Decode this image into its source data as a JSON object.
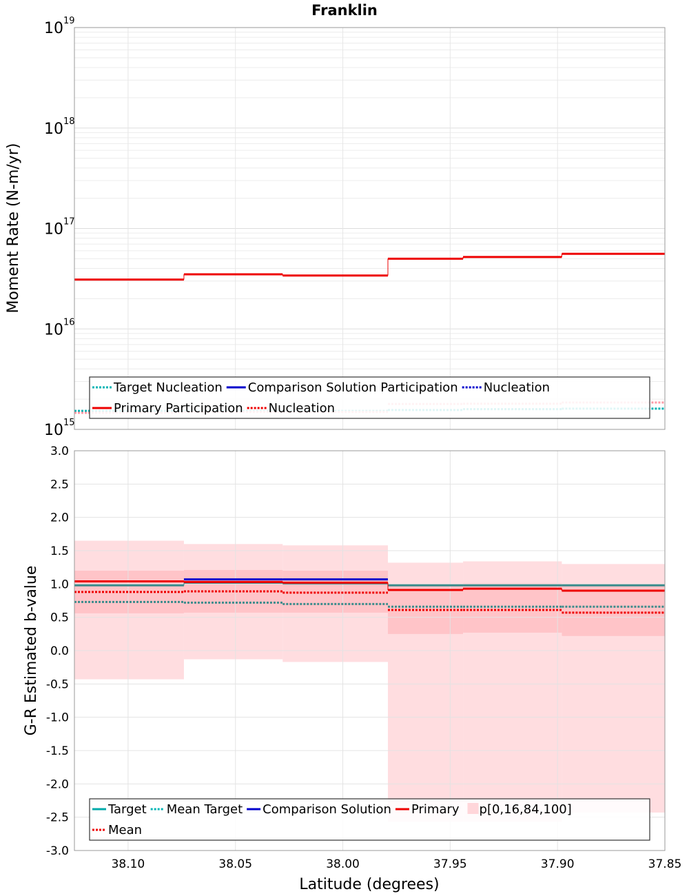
{
  "chart_data": [
    {
      "type": "line",
      "title": "Franklin",
      "xlabel": "",
      "ylabel": "Moment Rate (N-m/yr)",
      "y_scale": "log",
      "ylim": [
        1000000000000000.0,
        1e+19
      ],
      "xlim": [
        38.125,
        37.85
      ],
      "x_reversed": true,
      "y_ticks": [
        {
          "base": "10",
          "exp": "15"
        },
        {
          "base": "10",
          "exp": "16"
        },
        {
          "base": "10",
          "exp": "17"
        },
        {
          "base": "10",
          "exp": "18"
        },
        {
          "base": "10",
          "exp": "19"
        }
      ],
      "grid": true,
      "x_edges": [
        38.125,
        38.074,
        38.028,
        37.979,
        37.944,
        37.898,
        37.85
      ],
      "series": [
        {
          "name": "Primary Participation",
          "color": "#ee0000",
          "style": "solid",
          "values": [
            3.1e+16,
            3.5e+16,
            3.4e+16,
            5e+16,
            5.2e+16,
            5.6e+16
          ]
        },
        {
          "name": "Target Nucleation",
          "color": "#00b4b4",
          "style": "dotted",
          "values": [
            1530000000000000.0,
            1530000000000000.0,
            1530000000000000.0,
            1560000000000000.0,
            1590000000000000.0,
            1610000000000000.0
          ]
        },
        {
          "name": "Comparison Solution Participation",
          "color": "#0000cc",
          "style": "solid",
          "values": []
        },
        {
          "name": "Nucleation",
          "color": "#ff9aa6",
          "style": "dotted",
          "values": [
            1460000000000000.0,
            1490000000000000.0,
            1490000000000000.0,
            1790000000000000.0,
            1800000000000000.0,
            1850000000000000.0
          ]
        }
      ],
      "legend": {
        "placement": "bottom-center",
        "rows": [
          [
            {
              "label": "Target Nucleation",
              "color": "#00b4b4",
              "style": "dotted"
            },
            {
              "label": "Comparison Solution Participation",
              "color": "#0000cc",
              "style": "solid"
            },
            {
              "label": "Nucleation",
              "color": "#0000cc",
              "style": "dotted"
            }
          ],
          [
            {
              "label": "Primary Participation",
              "color": "#ee0000",
              "style": "solid"
            },
            {
              "label": "Nucleation",
              "color": "#ee0000",
              "style": "dotted"
            }
          ]
        ]
      }
    },
    {
      "type": "line",
      "title": "",
      "xlabel": "Latitude (degrees)",
      "ylabel": "G-R Estimated b-value",
      "ylim": [
        -3.0,
        3.0
      ],
      "y_ticks": [
        "-3.0",
        "-2.5",
        "-2.0",
        "-1.5",
        "-1.0",
        "-0.5",
        "0.0",
        "0.5",
        "1.0",
        "1.5",
        "2.0",
        "2.5",
        "3.0"
      ],
      "xlim": [
        38.125,
        37.85
      ],
      "x_reversed": true,
      "x_ticks": [
        "38.10",
        "38.05",
        "38.00",
        "37.95",
        "37.90",
        "37.85"
      ],
      "grid": true,
      "x_edges": [
        38.125,
        38.074,
        38.028,
        37.979,
        37.944,
        37.898,
        37.85
      ],
      "bands": [
        {
          "name": "p[0,100]",
          "color": "#ffdde0",
          "low": [
            -0.43,
            -0.13,
            -0.17,
            -2.57,
            -2.57,
            -2.43
          ],
          "high": [
            1.65,
            1.6,
            1.58,
            1.32,
            1.34,
            1.3
          ]
        },
        {
          "name": "p[16,84]",
          "color": "#ffc4c8",
          "low": [
            0.56,
            0.57,
            0.57,
            0.25,
            0.27,
            0.22
          ],
          "high": [
            1.2,
            1.21,
            1.2,
            1.0,
            1.01,
            1.0
          ]
        }
      ],
      "series": [
        {
          "name": "Target",
          "color": "#3c8c8c",
          "style": "solid",
          "values": [
            0.98,
            1.02,
            1.01,
            0.98,
            0.98,
            0.98
          ]
        },
        {
          "name": "Mean Target",
          "color": "#3c8c8c",
          "style": "dotted",
          "values": [
            0.73,
            0.72,
            0.7,
            0.66,
            0.66,
            0.66
          ]
        },
        {
          "name": "Comparison Solution",
          "color": "#0000cc",
          "style": "solid",
          "values": [
            null,
            1.07,
            1.07,
            null,
            null,
            null
          ]
        },
        {
          "name": "Primary",
          "color": "#ee0000",
          "style": "solid",
          "values": [
            1.04,
            1.03,
            1.02,
            0.91,
            0.93,
            0.9
          ]
        },
        {
          "name": "Mean",
          "color": "#ee0000",
          "style": "dotted",
          "values": [
            0.88,
            0.89,
            0.87,
            0.61,
            0.61,
            0.57
          ]
        }
      ],
      "legend": {
        "placement": "bottom-center",
        "rows": [
          [
            {
              "label": "Target",
              "color": "#00aaaa",
              "style": "solid"
            },
            {
              "label": "Mean Target",
              "color": "#00b4b4",
              "style": "dotted"
            },
            {
              "label": "Comparison Solution",
              "color": "#0000cc",
              "style": "solid"
            },
            {
              "label": "Primary",
              "color": "#ee0000",
              "style": "solid"
            },
            {
              "label": "p[0,16,84,100]",
              "color": "#ffd6da",
              "style": "patch"
            }
          ],
          [
            {
              "label": "Mean",
              "color": "#ee0000",
              "style": "dotted"
            }
          ]
        ]
      }
    }
  ]
}
